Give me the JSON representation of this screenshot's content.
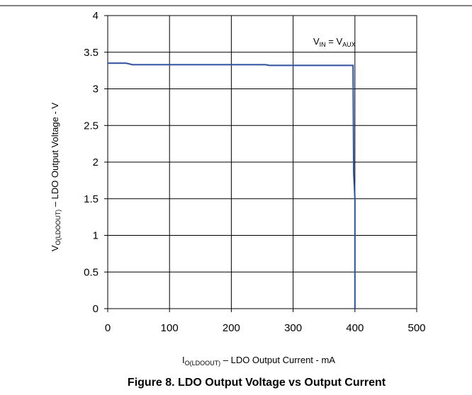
{
  "chart_data": {
    "type": "line",
    "title": "Figure 8. LDO Output Voltage vs Output Current",
    "xlabel": {
      "main": "I",
      "sub": "O(LDOOUT)",
      "rest": " – LDO Output Current   - mA"
    },
    "ylabel": {
      "main": "V",
      "sub": "O(LDOOUT)",
      "rest": " – LDO  Output Voltage - V"
    },
    "annotation": {
      "v1": "V",
      "sub1": "IN",
      "mid": " = V",
      "sub2": "AUX"
    },
    "xlim": [
      0,
      500
    ],
    "ylim": [
      0,
      4
    ],
    "x_ticks": [
      "0",
      "100",
      "200",
      "300",
      "400",
      "500"
    ],
    "y_ticks": [
      "0",
      "0.5",
      "1",
      "1.5",
      "2",
      "2.5",
      "3",
      "3.5",
      "4"
    ],
    "grid": true,
    "series": [
      {
        "color": "#2f4f9f",
        "points": [
          [
            0,
            3.35
          ],
          [
            30,
            3.35
          ],
          [
            40,
            3.33
          ],
          [
            100,
            3.33
          ],
          [
            200,
            3.33
          ],
          [
            255,
            3.33
          ],
          [
            262,
            3.32
          ],
          [
            330,
            3.32
          ],
          [
            397,
            3.32
          ],
          [
            398,
            1.85
          ],
          [
            400,
            1.5
          ],
          [
            400,
            0
          ]
        ]
      }
    ]
  }
}
